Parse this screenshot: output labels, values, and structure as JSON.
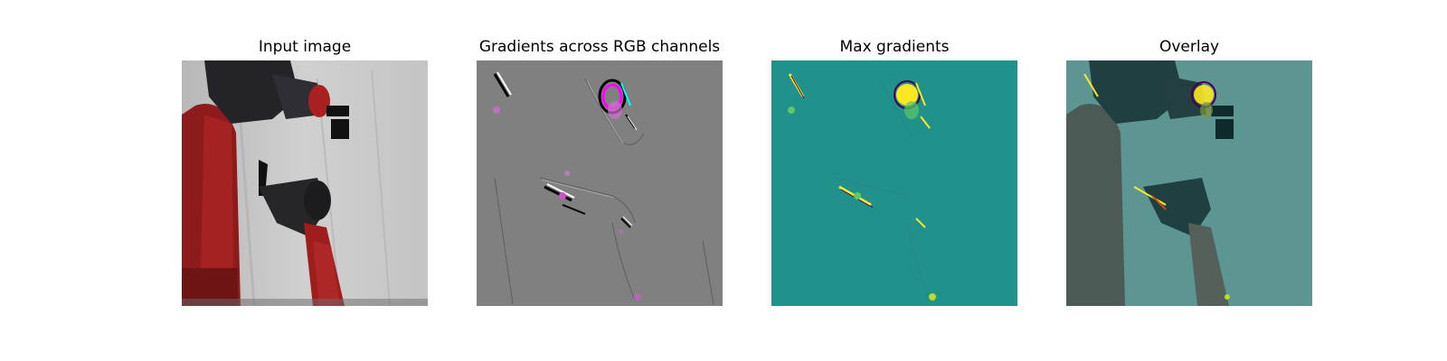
{
  "figure": {
    "panels": [
      {
        "title": "Input image"
      },
      {
        "title": "Gradients across RGB channels"
      },
      {
        "title": "Max gradients"
      },
      {
        "title": "Overlay"
      }
    ],
    "colors": {
      "background_gray": "#c9c9c9",
      "robot_red": "#9c1d1d",
      "robot_dark": "#1f1f23",
      "gradient_gray": "#808080",
      "viridis_teal": "#21918c",
      "viridis_yellow": "#fde725",
      "overlay_teal": "#3f8c88"
    }
  }
}
